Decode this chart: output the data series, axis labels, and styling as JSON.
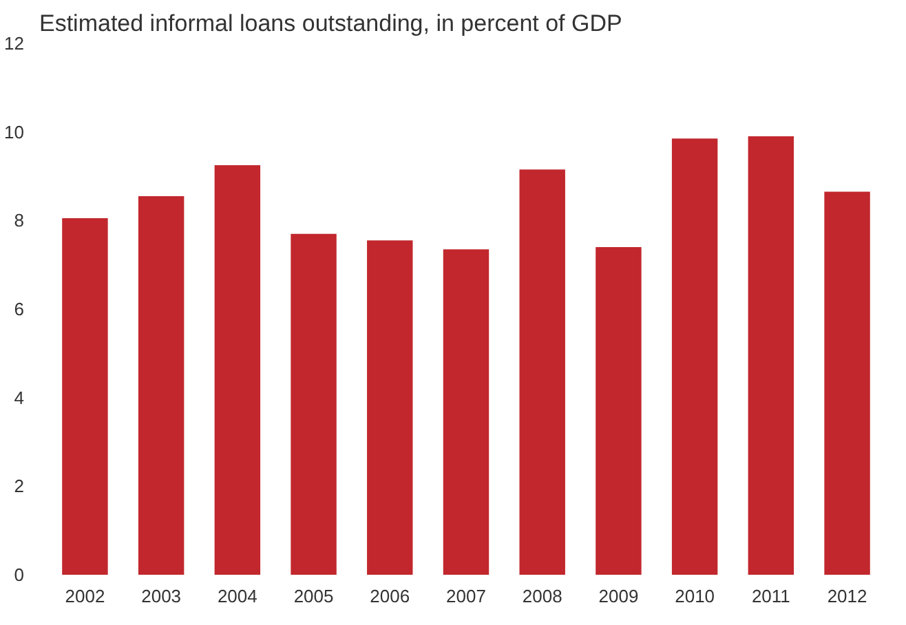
{
  "chart_data": {
    "type": "bar",
    "title": "Estimated informal loans outstanding, in percent of GDP",
    "categories": [
      "2002",
      "2003",
      "2004",
      "2005",
      "2006",
      "2007",
      "2008",
      "2009",
      "2010",
      "2011",
      "2012"
    ],
    "values": [
      8.05,
      8.55,
      9.25,
      7.7,
      7.55,
      7.35,
      9.15,
      7.4,
      9.85,
      9.9,
      8.65
    ],
    "color": "#c1272d",
    "ylim": [
      0,
      12
    ],
    "yticks": [
      0,
      2,
      4,
      6,
      8,
      10,
      12
    ],
    "grid": false
  }
}
